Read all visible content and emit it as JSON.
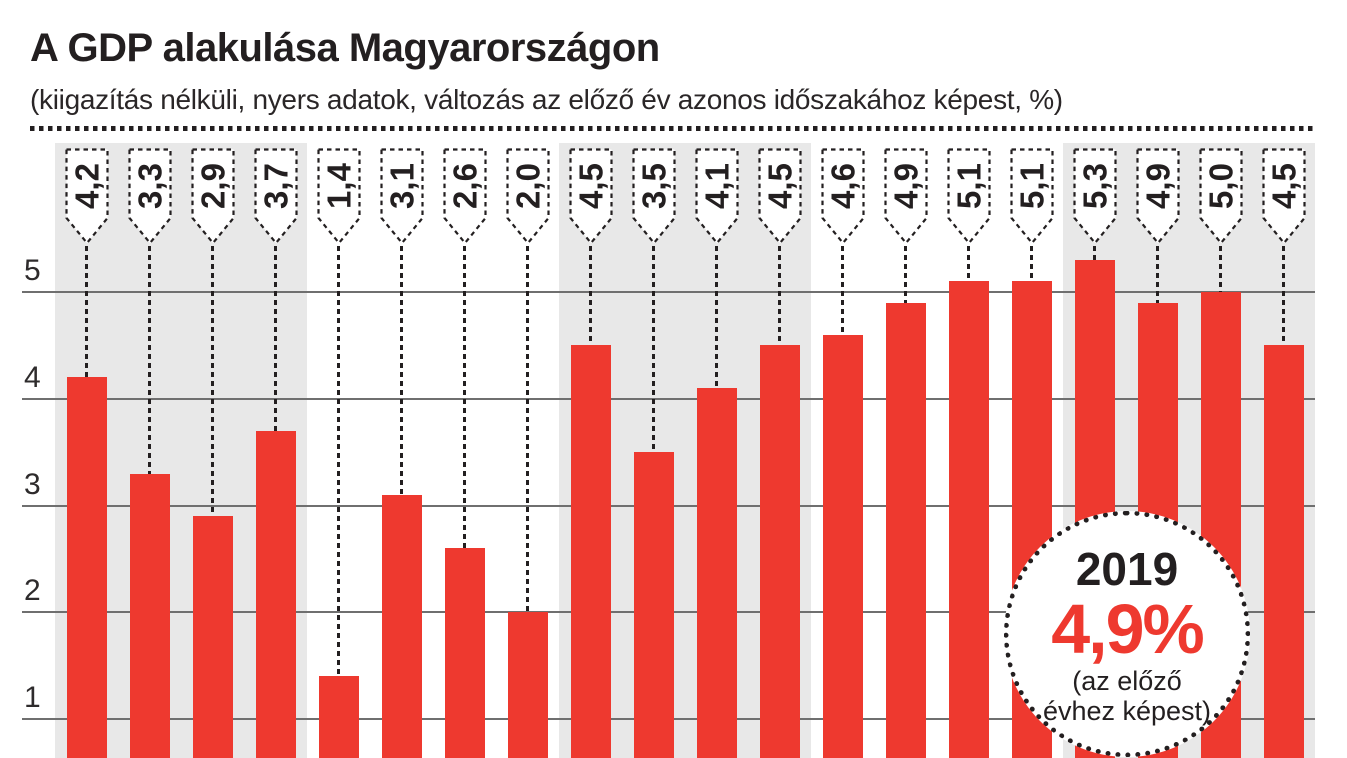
{
  "header": {
    "title": "A GDP alakulása Magyarországon",
    "subtitle": "(kiigazítás nélküli, nyers adatok, változás az előző év azonos időszakához képest, %)"
  },
  "badge": {
    "year": "2019",
    "value": "4,9%",
    "note_line1": "(az előző",
    "note_line2": "évhez képest)"
  },
  "colors": {
    "bar_red": "#ee392f",
    "stripe_gray": "#e8e8e8",
    "ink": "#231f20",
    "gridline_gray": "#6f6f6f"
  },
  "chart_data": {
    "type": "bar",
    "title": "A GDP alakulása Magyarországon",
    "subtitle": "(kiigazítás nélküli, nyers adatok, változás az előző év azonos időszakához képest, %)",
    "unit": "%",
    "values": [
      4.2,
      3.3,
      2.9,
      3.7,
      1.4,
      3.1,
      2.6,
      2.0,
      4.5,
      3.5,
      4.1,
      4.5,
      4.6,
      4.9,
      5.1,
      5.1,
      5.3,
      4.9,
      5.0,
      4.5
    ],
    "labels": [
      "4,2",
      "3,3",
      "2,9",
      "3,7",
      "1,4",
      "3,1",
      "2,6",
      "2,0",
      "4,5",
      "3,5",
      "4,1",
      "4,5",
      "4,6",
      "4,9",
      "5,1",
      "5,1",
      "5,3",
      "4,9",
      "5,0",
      "4,5"
    ],
    "y_ticks": [
      5,
      4,
      3,
      2,
      1
    ],
    "group_size": 4,
    "grid": "on",
    "annotation": {
      "year": "2019",
      "value": "4,9%",
      "note": "(az előző évhez képest)"
    }
  }
}
